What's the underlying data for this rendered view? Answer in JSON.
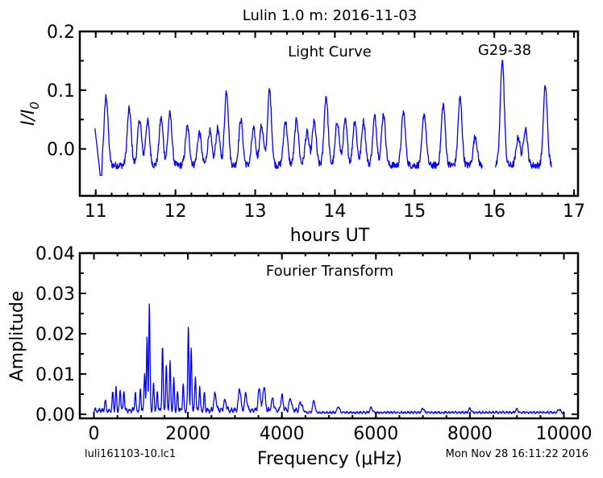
{
  "figure_title": "Lulin 1.0 m:  2016-11-03",
  "footer_left": "luli161103-10.lc1",
  "footer_right": "Mon Nov 28 16:11:22 2016",
  "chart_data": [
    {
      "type": "line",
      "annotation": "Light Curve",
      "object_label": "G29-38",
      "xlabel": "hours UT",
      "ylabel": "I/I0",
      "xlim": [
        10.8,
        17.05
      ],
      "ylim": [
        -0.08,
        0.2
      ],
      "x_ticks": [
        11,
        12,
        13,
        14,
        15,
        16,
        17
      ],
      "y_ticks": [
        0.0,
        0.1,
        0.2
      ],
      "y_tick_labels": [
        "0.0",
        "0.1",
        "0.2"
      ],
      "segments": [
        {
          "start": 10.99,
          "end": 15.85
        },
        {
          "start": 16.01,
          "end": 16.72
        }
      ],
      "peaks": [
        [
          11.13,
          0.09
        ],
        [
          11.42,
          0.068
        ],
        [
          11.55,
          0.05
        ],
        [
          11.65,
          0.048
        ],
        [
          11.82,
          0.052
        ],
        [
          11.93,
          0.06
        ],
        [
          12.15,
          0.038
        ],
        [
          12.3,
          0.028
        ],
        [
          12.43,
          0.03
        ],
        [
          12.53,
          0.035
        ],
        [
          12.64,
          0.099
        ],
        [
          12.82,
          0.05
        ],
        [
          12.98,
          0.034
        ],
        [
          13.08,
          0.04
        ],
        [
          13.18,
          0.1
        ],
        [
          13.38,
          0.048
        ],
        [
          13.52,
          0.05
        ],
        [
          13.65,
          0.028
        ],
        [
          13.74,
          0.046
        ],
        [
          13.89,
          0.09
        ],
        [
          14.03,
          0.047
        ],
        [
          14.13,
          0.048
        ],
        [
          14.25,
          0.048
        ],
        [
          14.36,
          0.047
        ],
        [
          14.5,
          0.055
        ],
        [
          14.61,
          0.06
        ],
        [
          14.86,
          0.063
        ],
        [
          15.12,
          0.06
        ],
        [
          15.36,
          0.076
        ],
        [
          15.57,
          0.087
        ],
        [
          15.76,
          0.022
        ],
        [
          16.1,
          0.152
        ],
        [
          16.3,
          0.02
        ],
        [
          16.39,
          0.036
        ],
        [
          16.64,
          0.107
        ]
      ]
    },
    {
      "type": "line",
      "annotation": "Fourier Transform",
      "xlabel": "Frequency (μHz)",
      "ylabel": "Amplitude",
      "xlim": [
        -300,
        10300
      ],
      "ylim": [
        -0.001,
        0.04
      ],
      "x_ticks": [
        0,
        2000,
        4000,
        6000,
        8000,
        10000
      ],
      "y_ticks": [
        0.0,
        0.01,
        0.02,
        0.03,
        0.04
      ],
      "y_tick_labels": [
        "0.00",
        "0.01",
        "0.02",
        "0.03",
        "0.04"
      ],
      "peaks": [
        [
          240,
          0.0025
        ],
        [
          400,
          0.0045
        ],
        [
          470,
          0.0052
        ],
        [
          560,
          0.005
        ],
        [
          640,
          0.005
        ],
        [
          880,
          0.0045
        ],
        [
          990,
          0.005
        ],
        [
          1080,
          0.0095
        ],
        [
          1130,
          0.018
        ],
        [
          1180,
          0.0262
        ],
        [
          1270,
          0.0065
        ],
        [
          1350,
          0.0045
        ],
        [
          1460,
          0.016
        ],
        [
          1540,
          0.011
        ],
        [
          1620,
          0.012
        ],
        [
          1700,
          0.0075
        ],
        [
          1780,
          0.0045
        ],
        [
          1900,
          0.0065
        ],
        [
          2010,
          0.0212
        ],
        [
          2070,
          0.015
        ],
        [
          2160,
          0.0085
        ],
        [
          2250,
          0.006
        ],
        [
          2350,
          0.0045
        ],
        [
          2580,
          0.004
        ],
        [
          2790,
          0.0025
        ],
        [
          3100,
          0.0055
        ],
        [
          3230,
          0.004
        ],
        [
          3520,
          0.0055
        ],
        [
          3620,
          0.006
        ],
        [
          3800,
          0.003
        ],
        [
          4000,
          0.0035
        ],
        [
          4180,
          0.003
        ],
        [
          4400,
          0.002
        ],
        [
          4680,
          0.003
        ],
        [
          5200,
          0.0015
        ],
        [
          5900,
          0.0012
        ],
        [
          7000,
          0.001
        ],
        [
          8000,
          0.001
        ],
        [
          9000,
          0.0008
        ],
        [
          9900,
          0.0008
        ]
      ]
    }
  ]
}
